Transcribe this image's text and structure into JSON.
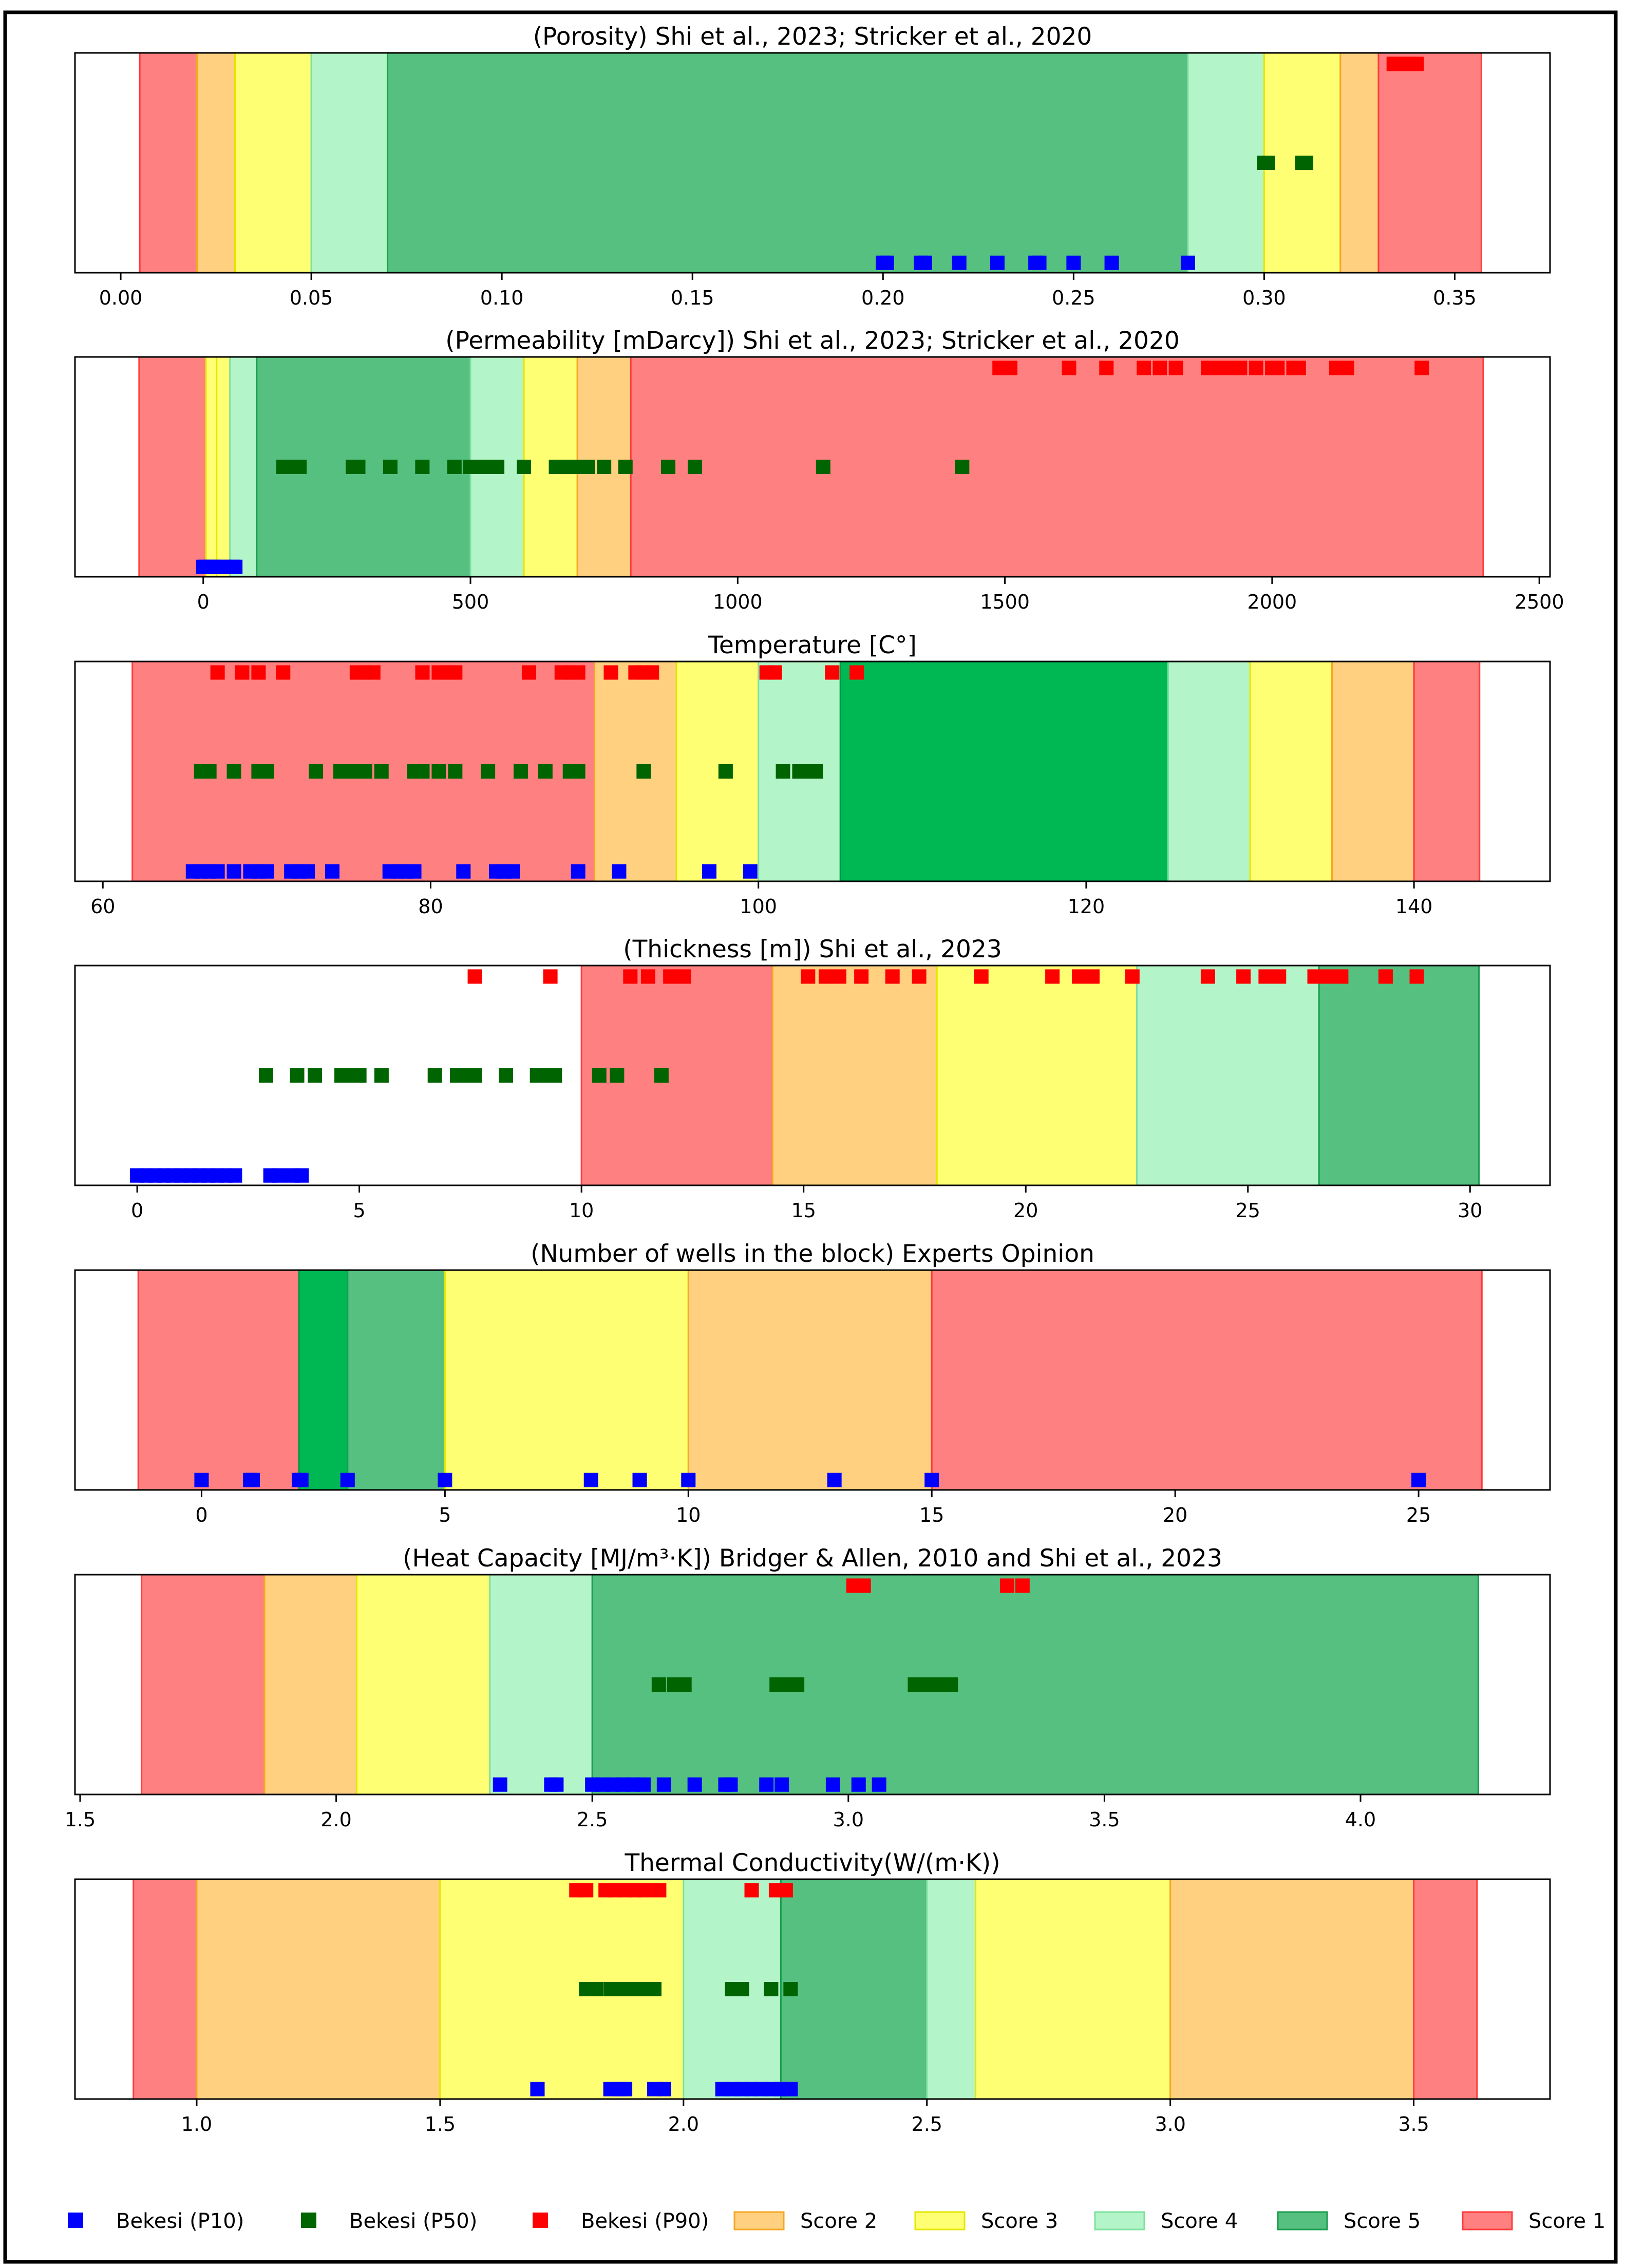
{
  "colors": {
    "score1": "#ff8080",
    "score2": "#ffd080",
    "score3": "#ffff73",
    "score4": "#b3f5c8",
    "score5": "#55c080",
    "score5_dark": "#00b853",
    "p10": "#0000ff",
    "p50": "#006400",
    "p90": "#ff0000"
  },
  "legend": [
    {
      "label": "Bekesi (P10)",
      "kind": "marker",
      "color_key": "p10"
    },
    {
      "label": "Bekesi (P50)",
      "kind": "marker",
      "color_key": "p50"
    },
    {
      "label": "Bekesi (P90)",
      "kind": "marker",
      "color_key": "p90"
    },
    {
      "label": "Score 2",
      "kind": "patch",
      "color_key": "score2"
    },
    {
      "label": "Score 3",
      "kind": "patch",
      "color_key": "score3"
    },
    {
      "label": "Score 4",
      "kind": "patch",
      "color_key": "score4"
    },
    {
      "label": "Score 5",
      "kind": "patch",
      "color_key": "score5"
    },
    {
      "label": "Score 1",
      "kind": "patch",
      "color_key": "score1"
    }
  ],
  "chart_data": [
    {
      "type": "scatter",
      "title": "(Porosity)  Shi et al., 2023; Stricker et al., 2020",
      "xlim": [
        -0.012,
        0.375
      ],
      "ticks": [
        0.0,
        0.05,
        0.1,
        0.15,
        0.2,
        0.25,
        0.3,
        0.35
      ],
      "tick_labels": [
        "0.00",
        "0.05",
        "0.10",
        "0.15",
        "0.20",
        "0.25",
        "0.30",
        "0.35"
      ],
      "bands": [
        {
          "from": 0.005,
          "to": 0.02,
          "score": "score1"
        },
        {
          "from": 0.02,
          "to": 0.03,
          "score": "score2"
        },
        {
          "from": 0.03,
          "to": 0.05,
          "score": "score3"
        },
        {
          "from": 0.05,
          "to": 0.07,
          "score": "score4"
        },
        {
          "from": 0.07,
          "to": 0.28,
          "score": "score5"
        },
        {
          "from": 0.28,
          "to": 0.3,
          "score": "score4"
        },
        {
          "from": 0.3,
          "to": 0.32,
          "score": "score3"
        },
        {
          "from": 0.32,
          "to": 0.33,
          "score": "score2"
        },
        {
          "from": 0.33,
          "to": 0.357,
          "score": "score1"
        }
      ],
      "series": [
        {
          "name": "Bekesi (P10)",
          "values": [
            0.2,
            0.201,
            0.21,
            0.211,
            0.22,
            0.23,
            0.24,
            0.241,
            0.25,
            0.26,
            0.28
          ]
        },
        {
          "name": "Bekesi (P50)",
          "values": [
            0.3,
            0.301,
            0.31,
            0.311
          ]
        },
        {
          "name": "Bekesi (P90)",
          "values": [
            0.334,
            0.336,
            0.338,
            0.34
          ]
        }
      ]
    },
    {
      "type": "scatter",
      "title": "(Permeability [mDarcy]) Shi et al., 2023; Stricker et al., 2020",
      "xlim": [
        -240,
        2520
      ],
      "ticks": [
        0,
        500,
        1000,
        1500,
        2000,
        2500
      ],
      "tick_labels": [
        "0",
        "500",
        "1000",
        "1500",
        "2000",
        "2500"
      ],
      "bands": [
        {
          "from": -120,
          "to": 5,
          "score": "score1"
        },
        {
          "from": 5,
          "to": 25,
          "score": "score3"
        },
        {
          "from": 25,
          "to": 50,
          "score": "score3"
        },
        {
          "from": 50,
          "to": 100,
          "score": "score4"
        },
        {
          "from": 100,
          "to": 500,
          "score": "score5"
        },
        {
          "from": 500,
          "to": 600,
          "score": "score4"
        },
        {
          "from": 600,
          "to": 700,
          "score": "score3"
        },
        {
          "from": 700,
          "to": 800,
          "score": "score2"
        },
        {
          "from": 800,
          "to": 2395,
          "score": "score1"
        }
      ],
      "series": [
        {
          "name": "Bekesi (P10)",
          "values": [
            0,
            5,
            10,
            15,
            20,
            30,
            40,
            55,
            60
          ]
        },
        {
          "name": "Bekesi (P50)",
          "values": [
            150,
            160,
            170,
            180,
            280,
            290,
            350,
            410,
            470,
            500,
            510,
            530,
            550,
            600,
            660,
            680,
            700,
            720,
            750,
            790,
            870,
            920,
            1160,
            1420
          ]
        },
        {
          "name": "Bekesi (P90)",
          "values": [
            1490,
            1510,
            1620,
            1690,
            1760,
            1790,
            1820,
            1880,
            1900,
            1920,
            1940,
            1970,
            2000,
            2010,
            2040,
            2050,
            2120,
            2140,
            2280
          ]
        }
      ]
    },
    {
      "type": "scatter",
      "title": "Temperature [C°]",
      "xlim": [
        58.3,
        148.3
      ],
      "ticks": [
        60,
        80,
        100,
        120,
        140
      ],
      "tick_labels": [
        "60",
        "80",
        "100",
        "120",
        "140"
      ],
      "bands": [
        {
          "from": 61.8,
          "to": 90,
          "score": "score1"
        },
        {
          "from": 90,
          "to": 95,
          "score": "score2"
        },
        {
          "from": 95,
          "to": 100,
          "score": "score3"
        },
        {
          "from": 100,
          "to": 105,
          "score": "score4"
        },
        {
          "from": 105,
          "to": 125,
          "score": "score5_dark"
        },
        {
          "from": 125,
          "to": 130,
          "score": "score4"
        },
        {
          "from": 130,
          "to": 135,
          "score": "score3"
        },
        {
          "from": 135,
          "to": 140,
          "score": "score2"
        },
        {
          "from": 140,
          "to": 144,
          "score": "score1"
        }
      ],
      "series": [
        {
          "name": "Bekesi (P10)",
          "values": [
            65.5,
            66,
            66.5,
            67,
            68,
            69,
            69.5,
            70,
            71.5,
            72,
            72.5,
            74,
            77.5,
            78,
            78.5,
            79,
            82,
            84,
            84.5,
            85,
            89,
            91.5,
            97,
            99.5
          ]
        },
        {
          "name": "Bekesi (P50)",
          "values": [
            66,
            66.5,
            68,
            69.5,
            70,
            73,
            74.5,
            75,
            75.5,
            76,
            77,
            79,
            79.5,
            80.5,
            81.5,
            83.5,
            85.5,
            87,
            88.5,
            89,
            93,
            98,
            101.5,
            102.5,
            103,
            103.5
          ]
        },
        {
          "name": "Bekesi (P90)",
          "values": [
            67,
            68.5,
            69.5,
            71,
            75.5,
            76,
            76.5,
            79.5,
            80.5,
            81,
            81.5,
            86,
            88,
            88.5,
            89,
            91,
            92.5,
            93,
            93.5,
            100.5,
            101,
            104.5,
            106
          ]
        }
      ]
    },
    {
      "type": "scatter",
      "title": "(Thickness [m]) Shi et al., 2023",
      "xlim": [
        -1.4,
        31.8
      ],
      "ticks": [
        0,
        5,
        10,
        15,
        20,
        25,
        30
      ],
      "tick_labels": [
        "0",
        "5",
        "10",
        "15",
        "20",
        "25",
        "30"
      ],
      "bands": [
        {
          "from": 10,
          "to": 14.3,
          "score": "score1"
        },
        {
          "from": 14.3,
          "to": 18,
          "score": "score2"
        },
        {
          "from": 18,
          "to": 22.5,
          "score": "score3"
        },
        {
          "from": 22.5,
          "to": 26.6,
          "score": "score4"
        },
        {
          "from": 26.6,
          "to": 30.2,
          "score": "score5"
        }
      ],
      "series": [
        {
          "name": "Bekesi (P10)",
          "values": [
            0,
            0.2,
            0.4,
            0.6,
            0.8,
            1,
            1.2,
            1.4,
            1.6,
            1.8,
            2,
            2.2,
            3,
            3.2,
            3.5,
            3.7
          ]
        },
        {
          "name": "Bekesi (P50)",
          "values": [
            2.9,
            3.6,
            4,
            4.6,
            4.8,
            5,
            5.5,
            6.7,
            7.2,
            7.4,
            7.6,
            8.3,
            9,
            9.2,
            9.4,
            10.4,
            10.8,
            11.8
          ]
        },
        {
          "name": "Bekesi (P90)",
          "values": [
            7.6,
            9.3,
            11.1,
            11.5,
            12,
            12.3,
            15.1,
            15.5,
            15.8,
            16.3,
            17,
            17.6,
            19,
            20.6,
            21.2,
            21.5,
            22.4,
            24.1,
            24.9,
            25.4,
            25.7,
            26.5,
            26.8,
            27.1,
            28.1,
            28.8
          ]
        }
      ]
    },
    {
      "type": "scatter",
      "title": "(Number of wells in the block) Experts Opinion",
      "xlim": [
        -2.6,
        27.7
      ],
      "ticks": [
        0,
        5,
        10,
        15,
        20,
        25
      ],
      "tick_labels": [
        "0",
        "5",
        "10",
        "15",
        "20",
        "25"
      ],
      "bands": [
        {
          "from": -1.3,
          "to": 2,
          "score": "score1"
        },
        {
          "from": 2,
          "to": 3,
          "score": "score5_dark"
        },
        {
          "from": 3,
          "to": 5,
          "score": "score5"
        },
        {
          "from": 5,
          "to": 10,
          "score": "score3"
        },
        {
          "from": 10,
          "to": 15,
          "score": "score2"
        },
        {
          "from": 15,
          "to": 26.3,
          "score": "score1"
        }
      ],
      "series": [
        {
          "name": "Bekesi (P10)",
          "values": [
            0,
            1,
            1.05,
            2,
            2.05,
            3,
            5,
            8,
            9,
            10,
            13,
            15,
            25
          ]
        }
      ]
    },
    {
      "type": "scatter",
      "title": "(Heat Capacity [MJ/m³·K]) Bridger & Allen, 2010 and Shi et al., 2023",
      "xlim": [
        1.49,
        4.37
      ],
      "ticks": [
        1.5,
        2.0,
        2.5,
        3.0,
        3.5,
        4.0
      ],
      "tick_labels": [
        "1.5",
        "2.0",
        "2.5",
        "3.0",
        "3.5",
        "4.0"
      ],
      "bands": [
        {
          "from": 1.62,
          "to": 1.86,
          "score": "score1"
        },
        {
          "from": 1.86,
          "to": 2.04,
          "score": "score2"
        },
        {
          "from": 2.04,
          "to": 2.3,
          "score": "score3"
        },
        {
          "from": 2.3,
          "to": 2.5,
          "score": "score4"
        },
        {
          "from": 2.5,
          "to": 4.23,
          "score": "score5"
        }
      ],
      "series": [
        {
          "name": "Bekesi (P10)",
          "values": [
            2.32,
            2.42,
            2.43,
            2.5,
            2.52,
            2.54,
            2.56,
            2.58,
            2.6,
            2.64,
            2.7,
            2.76,
            2.77,
            2.84,
            2.87,
            2.97,
            3.02,
            3.06
          ]
        },
        {
          "name": "Bekesi (P50)",
          "values": [
            2.63,
            2.66,
            2.68,
            2.86,
            2.88,
            2.9,
            3.13,
            3.15,
            3.17,
            3.19,
            3.2
          ]
        },
        {
          "name": "Bekesi (P90)",
          "values": [
            3.01,
            3.03,
            3.31,
            3.34
          ]
        }
      ]
    },
    {
      "type": "scatter",
      "title": "Thermal Conductivity(W/(m·K))",
      "xlim": [
        0.75,
        3.78
      ],
      "ticks": [
        1.0,
        1.5,
        2.0,
        2.5,
        3.0,
        3.5
      ],
      "tick_labels": [
        "1.0",
        "1.5",
        "2.0",
        "2.5",
        "3.0",
        "3.5"
      ],
      "bands": [
        {
          "from": 0.87,
          "to": 1.0,
          "score": "score1"
        },
        {
          "from": 1.0,
          "to": 1.5,
          "score": "score2"
        },
        {
          "from": 1.5,
          "to": 2.0,
          "score": "score3"
        },
        {
          "from": 2.0,
          "to": 2.2,
          "score": "score4"
        },
        {
          "from": 2.2,
          "to": 2.5,
          "score": "score5"
        },
        {
          "from": 2.5,
          "to": 2.6,
          "score": "score4"
        },
        {
          "from": 2.6,
          "to": 3.0,
          "score": "score3"
        },
        {
          "from": 3.0,
          "to": 3.5,
          "score": "score2"
        },
        {
          "from": 3.5,
          "to": 3.63,
          "score": "score1"
        }
      ],
      "series": [
        {
          "name": "Bekesi (P10)",
          "values": [
            1.7,
            1.85,
            1.87,
            1.88,
            1.94,
            1.96,
            2.08,
            2.1,
            2.12,
            2.14,
            2.16,
            2.18,
            2.2,
            2.22
          ]
        },
        {
          "name": "Bekesi (P50)",
          "values": [
            1.8,
            1.82,
            1.85,
            1.87,
            1.88,
            1.9,
            1.92,
            1.94,
            2.1,
            2.12,
            2.18,
            2.22
          ]
        },
        {
          "name": "Bekesi (P90)",
          "values": [
            1.78,
            1.8,
            1.84,
            1.86,
            1.88,
            1.9,
            1.92,
            1.95,
            2.14,
            2.19,
            2.21
          ]
        }
      ]
    }
  ]
}
